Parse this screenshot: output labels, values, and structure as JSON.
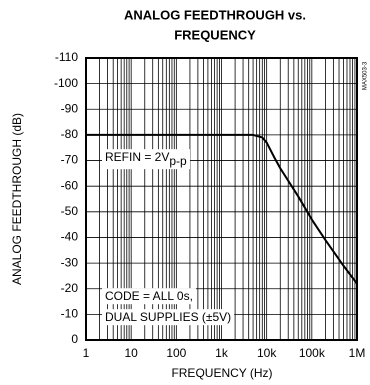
{
  "chart_data": {
    "type": "line",
    "title": [
      "ANALOG FEEDTHROUGH vs.",
      "FREQUENCY"
    ],
    "x_label": "FREQUENCY (Hz)",
    "y_label": "ANALOG FEEDTHROUGH (dB)",
    "side_note": "MAX503-3",
    "x_log": true,
    "grid": true,
    "x": [
      1,
      1000,
      5000,
      8000,
      10000,
      15000,
      20000,
      50000,
      100000,
      200000,
      500000,
      1000000
    ],
    "series": [
      {
        "color": "#000000",
        "values": [
          -80,
          -80,
          -80,
          -79,
          -77,
          -71,
          -67,
          -56,
          -47,
          -39,
          -29,
          -22
        ]
      }
    ],
    "xlim": [
      1,
      1000000
    ],
    "xticks": [
      1,
      10,
      100,
      {
        "value": 1000,
        "label": "1k"
      },
      {
        "value": 10000,
        "label": "10k"
      },
      {
        "value": 100000,
        "label": "100k"
      },
      {
        "value": 1000000,
        "label": "1M"
      }
    ],
    "ylim": [
      0,
      -110
    ],
    "yticks": [
      0,
      -10,
      -20,
      -30,
      -40,
      -50,
      -60,
      -70,
      -80,
      -90,
      -100,
      -110
    ],
    "annotations": [
      {
        "text": "REFIN = 2V",
        "sub": "p-p"
      },
      {
        "text": "CODE = ALL 0s,"
      },
      {
        "text": "DUAL SUPPLIES (±5V)"
      }
    ]
  }
}
